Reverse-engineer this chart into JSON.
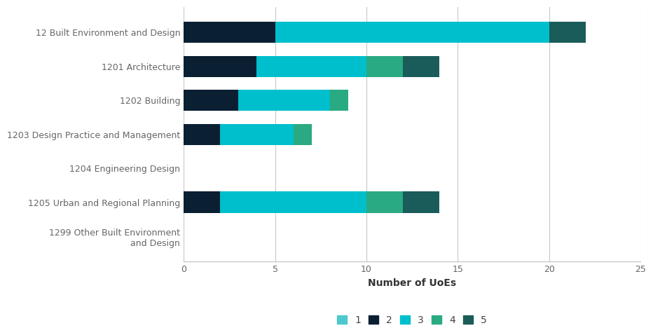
{
  "categories": [
    "12 Built Environment and Design",
    "1201 Architecture",
    "1202 Building",
    "1203 Design Practice and Management",
    "1204 Engineering Design",
    "1205 Urban and Regional Planning",
    "1299 Other Built Environment\nand Design"
  ],
  "ratings": {
    "1": [
      0,
      0,
      0,
      0,
      0,
      0,
      0
    ],
    "2": [
      5,
      4,
      3,
      2,
      0,
      2,
      0
    ],
    "3": [
      15,
      6,
      5,
      4,
      0,
      8,
      0
    ],
    "4": [
      0,
      2,
      1,
      1,
      0,
      2,
      0
    ],
    "5": [
      2,
      2,
      0,
      0,
      0,
      2,
      0
    ]
  },
  "colors": {
    "1": "#4DC8CC",
    "2": "#0B1F33",
    "3": "#00BFCC",
    "4": "#2AAA82",
    "5": "#1A5C5A"
  },
  "xlabel": "Number of UoEs",
  "xlim": [
    0,
    25
  ],
  "xticks": [
    0,
    5,
    10,
    15,
    20,
    25
  ],
  "background_color": "#ffffff",
  "grid_color": "#c8c8c8",
  "bar_height": 0.62,
  "legend_labels": [
    "1",
    "2",
    "3",
    "4",
    "5"
  ]
}
